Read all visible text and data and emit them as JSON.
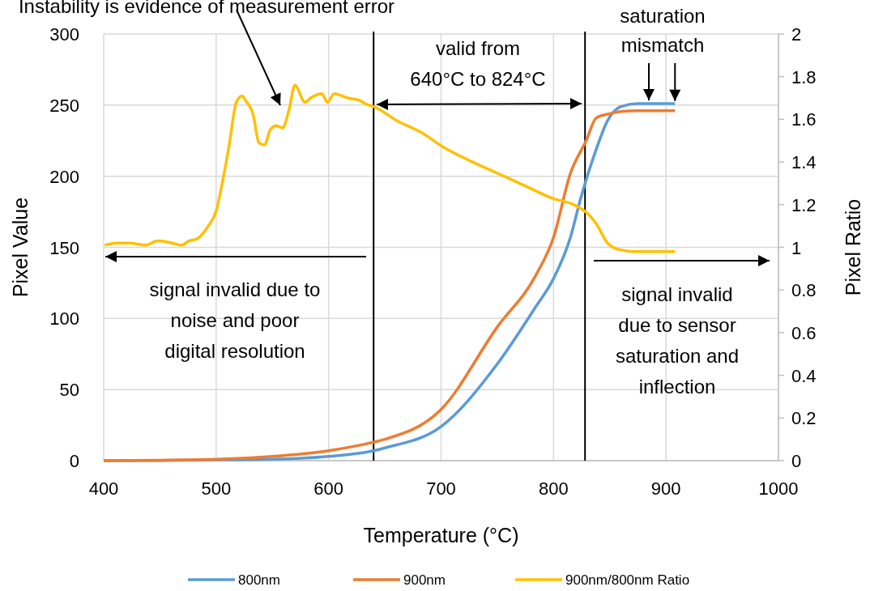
{
  "chart_data": {
    "type": "line",
    "xlabel": "Temperature (°C)",
    "ylabel": "Pixel Value",
    "y2label": "Pixel Ratio",
    "xlim": [
      400,
      1000
    ],
    "xticks": [
      400,
      500,
      600,
      700,
      800,
      900,
      1000
    ],
    "ylim": [
      0,
      300
    ],
    "yticks": [
      0,
      50,
      100,
      150,
      200,
      250,
      300
    ],
    "y2lim": [
      0,
      2
    ],
    "y2ticks": [
      0,
      {
        "value": 0.2,
        "label": "0.2"
      },
      {
        "value": 0.4,
        "label": "0.4"
      },
      {
        "value": 0.6,
        "label": "0.6"
      },
      {
        "value": 0.8,
        "label": "0.8"
      },
      1,
      {
        "value": 1.2,
        "label": "1.2"
      },
      {
        "value": 1.4,
        "label": "1.4"
      },
      {
        "value": 1.6,
        "label": "1.6"
      },
      {
        "value": 1.8,
        "label": "1.8"
      },
      2
    ],
    "grid": true,
    "legend": "bottom",
    "line_style": "solid",
    "marker": "none",
    "series": [
      {
        "name": "800nm",
        "color": "#5b9bd5",
        "x": [
          400,
          450,
          500,
          550,
          600,
          640,
          650,
          700,
          750,
          784,
          800,
          815,
          824,
          838,
          848,
          860,
          875,
          890,
          908
        ],
        "values": [
          0,
          0.2,
          0.5,
          1,
          3,
          7,
          9,
          24,
          68,
          108,
          128,
          157,
          184,
          219,
          239,
          249,
          251,
          251,
          251
        ]
      },
      {
        "name": "900nm",
        "color": "#ed7d31",
        "x": [
          400,
          450,
          500,
          550,
          600,
          640,
          650,
          700,
          750,
          784,
          800,
          815,
          829,
          838,
          850,
          860,
          875,
          890,
          908
        ],
        "values": [
          0,
          0.3,
          1,
          3,
          7,
          13,
          15,
          36,
          94,
          130,
          157,
          202,
          225,
          241,
          244,
          245.5,
          246,
          246,
          246
        ]
      },
      {
        "name": "900nm/800nm Ratio",
        "color": "#ffc000",
        "axis": "y2",
        "x": [
          401,
          411,
          423,
          437,
          448,
          461,
          469,
          476,
          483,
          493,
          500,
          505,
          511,
          518,
          523,
          526,
          533,
          538,
          543,
          548,
          553,
          559,
          565,
          570,
          579,
          584,
          594,
          599,
          605,
          617,
          627,
          634,
          640,
          662,
          682,
          702,
          724,
          749,
          774,
          799,
          818,
          830,
          838,
          848,
          858,
          873,
          908
        ],
        "values": [
          1.01,
          1.02,
          1.02,
          1.01,
          1.03,
          1.02,
          1.01,
          1.03,
          1.04,
          1.1,
          1.17,
          1.29,
          1.46,
          1.68,
          1.71,
          1.69,
          1.62,
          1.49,
          1.48,
          1.55,
          1.57,
          1.56,
          1.65,
          1.76,
          1.68,
          1.7,
          1.72,
          1.68,
          1.72,
          1.7,
          1.69,
          1.67,
          1.66,
          1.59,
          1.54,
          1.47,
          1.41,
          1.35,
          1.29,
          1.23,
          1.2,
          1.16,
          1.11,
          1.02,
          0.99,
          0.98,
          0.98
        ]
      }
    ],
    "ref_lines": [
      {
        "axis": "x",
        "value": 640,
        "color": "#000000"
      },
      {
        "axis": "x",
        "value": 828,
        "color": "#000000"
      }
    ],
    "annotations": [
      "Instability is evidence of measurement error",
      "valid from 640°C to 824°C",
      {
        "text": "saturation mismatch",
        "x": 908,
        "y": 250
      },
      "signal invalid due to noise and poor digital resolution",
      "signal invalid due to sensor saturation and inflection"
    ]
  }
}
